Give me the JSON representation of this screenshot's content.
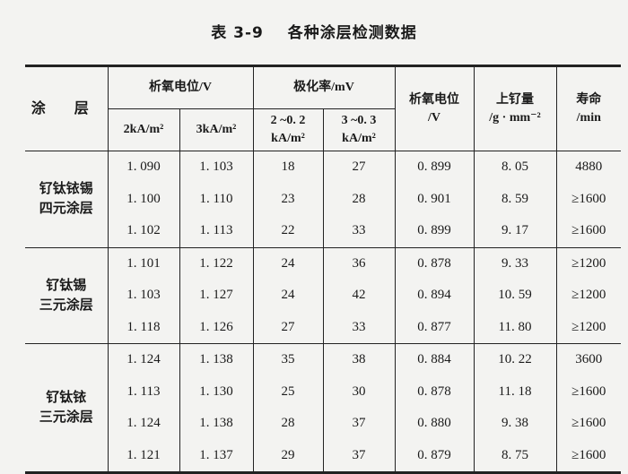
{
  "title": {
    "number": "表 3-9",
    "text": "各种涂层检测数据"
  },
  "headers": {
    "coating": "涂 层",
    "oxygen_potential_group": "析氧电位/V",
    "col_2ka": "2kA/m²",
    "col_3ka": "3kA/m²",
    "polarization_group": "极化率/mV",
    "col_pol1_line1": "2 ~0. 2",
    "col_pol1_line2": "kA/m²",
    "col_pol2_line1": "3 ~0. 3",
    "col_pol2_line2": "kA/m²",
    "oxygen_potential_line1": "析氧电位",
    "oxygen_potential_line2": "/V",
    "ru_loading_line1": "上钌量",
    "ru_loading_line2": "/g · mm⁻²",
    "life_line1": "寿命",
    "life_line2": "/min"
  },
  "groups": [
    {
      "name_line1": "钌钛铱锡",
      "name_line2": "四元涂层",
      "rows": [
        [
          "1. 090",
          "1. 103",
          "18",
          "27",
          "0. 899",
          "8. 05",
          "4880"
        ],
        [
          "1. 100",
          "1. 110",
          "23",
          "28",
          "0. 901",
          "8. 59",
          "≥1600"
        ],
        [
          "1. 102",
          "1. 113",
          "22",
          "33",
          "0. 899",
          "9. 17",
          "≥1600"
        ]
      ]
    },
    {
      "name_line1": "钌钛锡",
      "name_line2": "三元涂层",
      "rows": [
        [
          "1. 101",
          "1. 122",
          "24",
          "36",
          "0. 878",
          "9. 33",
          "≥1200"
        ],
        [
          "1. 103",
          "1. 127",
          "24",
          "42",
          "0. 894",
          "10. 59",
          "≥1200"
        ],
        [
          "1. 118",
          "1. 126",
          "27",
          "33",
          "0. 877",
          "11. 80",
          "≥1200"
        ]
      ]
    },
    {
      "name_line1": "钌钛铱",
      "name_line2": "三元涂层",
      "rows": [
        [
          "1. 124",
          "1. 138",
          "35",
          "38",
          "0. 884",
          "10. 22",
          "3600"
        ],
        [
          "1. 113",
          "1. 130",
          "25",
          "30",
          "0. 878",
          "11. 18",
          "≥1600"
        ],
        [
          "1. 124",
          "1. 138",
          "28",
          "37",
          "0. 880",
          "9. 38",
          "≥1600"
        ],
        [
          "1. 121",
          "1. 137",
          "29",
          "37",
          "0. 879",
          "8. 75",
          "≥1600"
        ]
      ]
    }
  ]
}
